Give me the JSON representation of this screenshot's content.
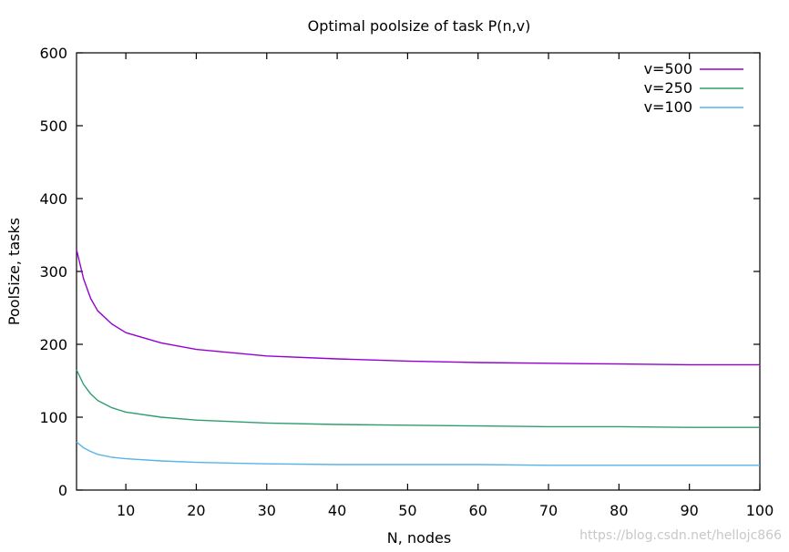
{
  "chart_data": {
    "type": "line",
    "title": "Optimal poolsize of task P(n,v)",
    "xlabel": "N, nodes",
    "ylabel": "PoolSize, tasks",
    "xlim": [
      3,
      100
    ],
    "ylim": [
      0,
      600
    ],
    "xticks": [
      10,
      20,
      30,
      40,
      50,
      60,
      70,
      80,
      90,
      100
    ],
    "yticks": [
      0,
      100,
      200,
      300,
      400,
      500,
      600
    ],
    "grid": false,
    "legend_position": "top-right",
    "x": [
      3,
      4,
      5,
      6,
      8,
      10,
      15,
      20,
      30,
      40,
      50,
      60,
      70,
      80,
      90,
      100
    ],
    "series": [
      {
        "name": "v=500",
        "color": "#9400d3",
        "values": [
          330,
          290,
          263,
          246,
          228,
          216,
          202,
          193,
          184,
          180,
          177,
          175,
          174,
          173,
          172,
          172
        ]
      },
      {
        "name": "v=250",
        "color": "#2e9e6e",
        "values": [
          165,
          145,
          132,
          123,
          113,
          107,
          100,
          96,
          92,
          90,
          89,
          88,
          87,
          87,
          86,
          86
        ]
      },
      {
        "name": "v=100",
        "color": "#56b4e9",
        "values": [
          66,
          58,
          53,
          49,
          45,
          43,
          40,
          38,
          36,
          35,
          35,
          35,
          34,
          34,
          34,
          34
        ]
      }
    ]
  },
  "watermark": "https://blog.csdn.net/hellojc866"
}
